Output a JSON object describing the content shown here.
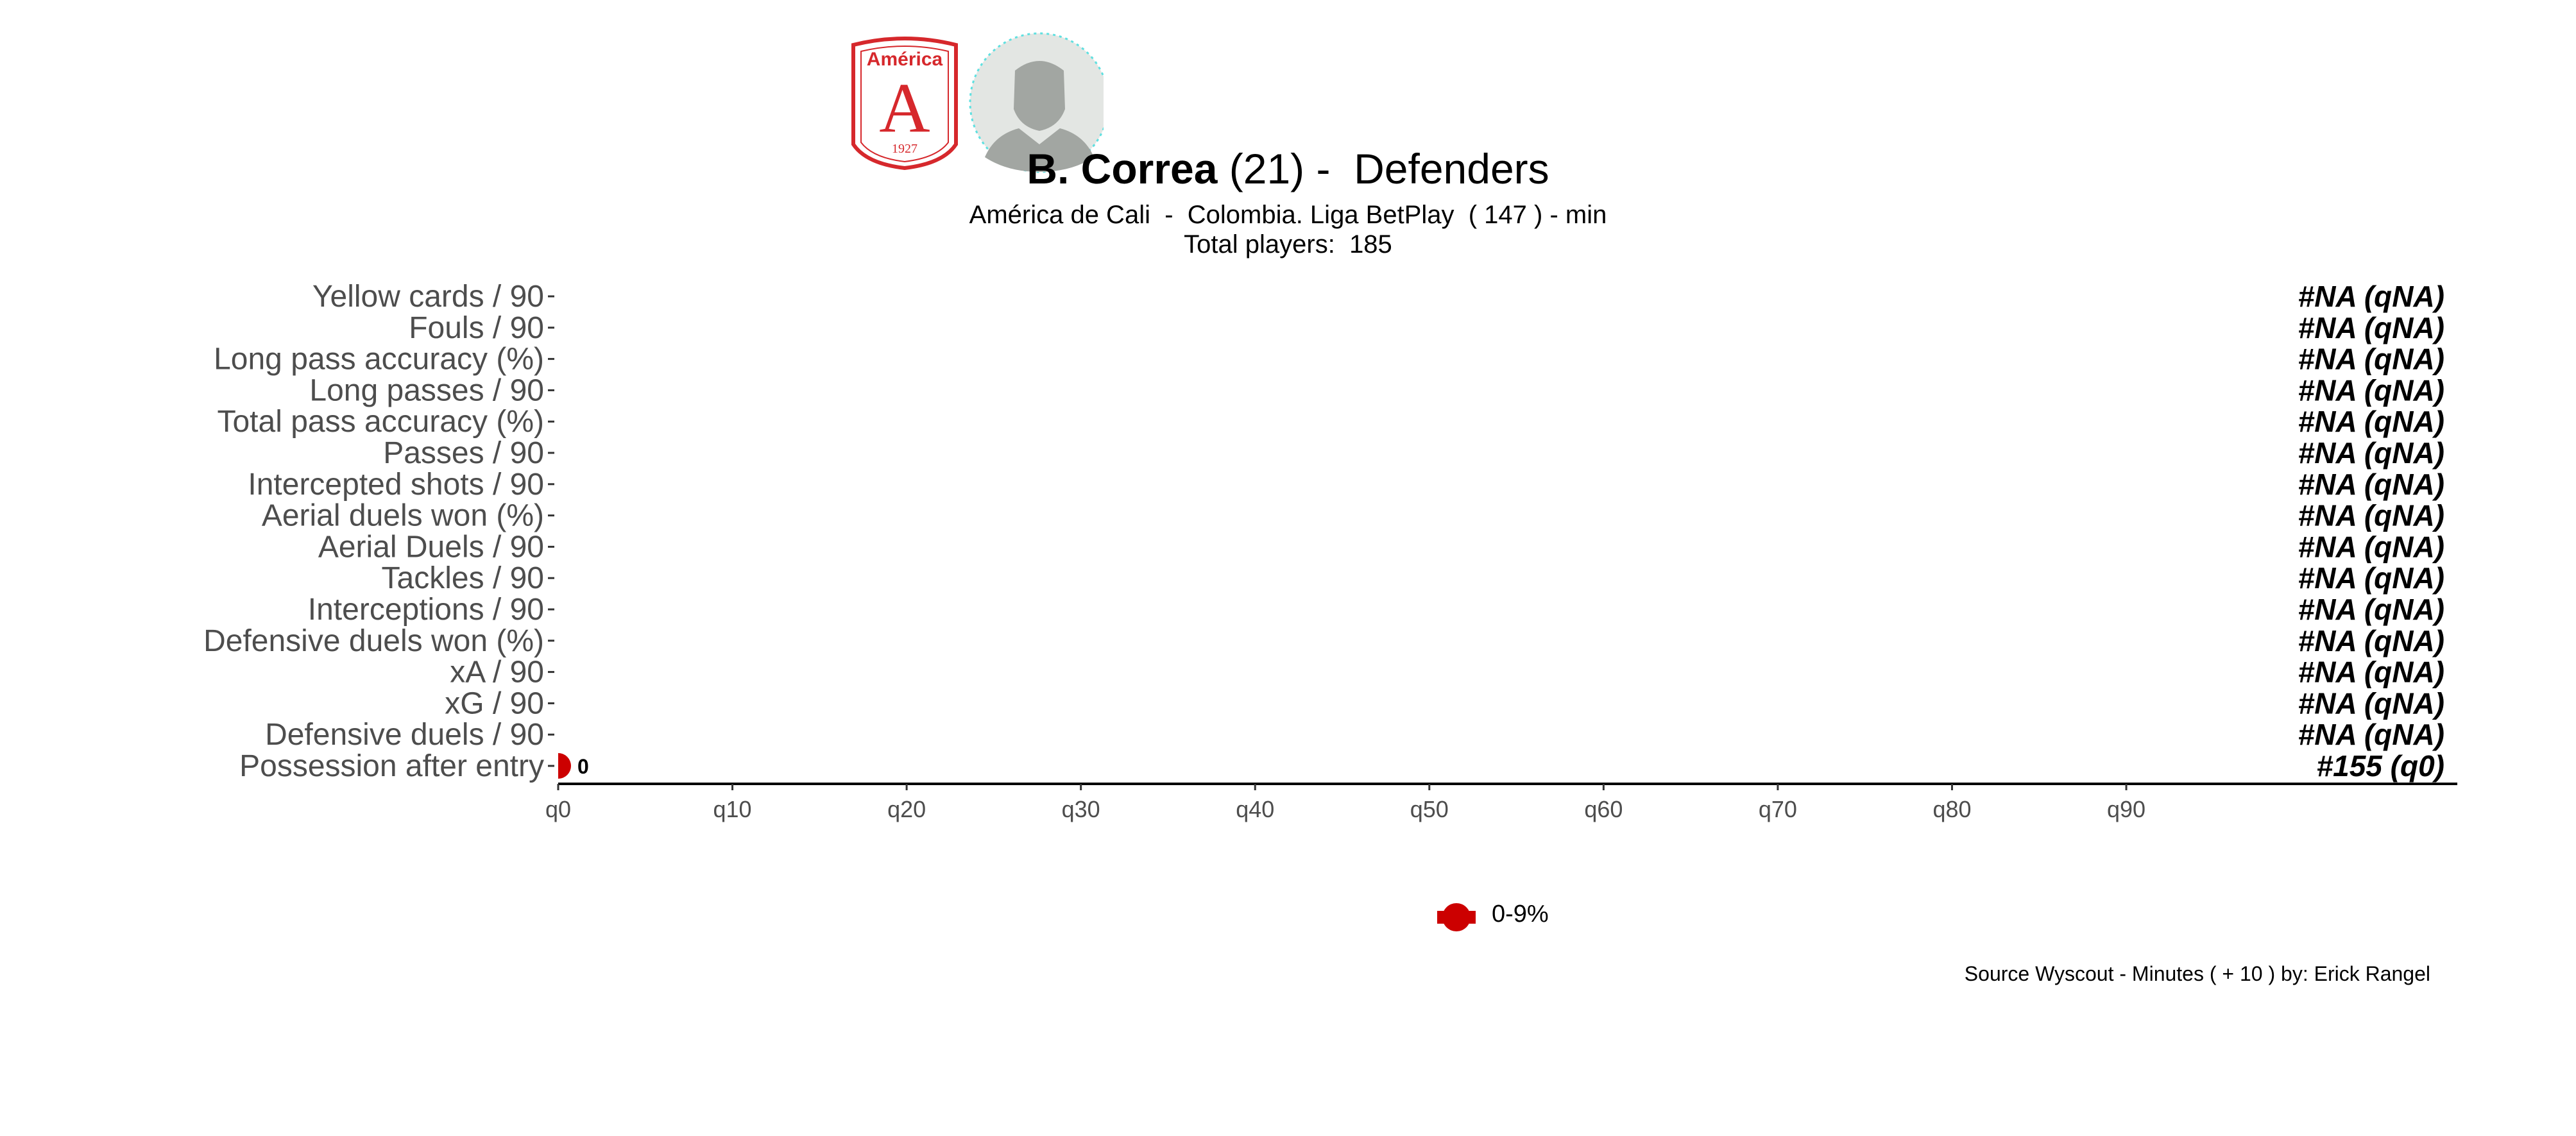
{
  "header": {
    "crest": {
      "name": "América",
      "letter": "A",
      "year": "1927",
      "color": "#d6282c"
    },
    "player_photo": "player-silhouette"
  },
  "title": {
    "player_name": "B. Correa",
    "rest": " (21) -  Defenders"
  },
  "subtitle": {
    "line1": "América de Cali  -  Colombia. Liga BetPlay  ( 147 ) - min",
    "line2": "Total players:  185"
  },
  "chart_data": {
    "type": "scatter",
    "categories": [
      "Yellow cards / 90",
      "Fouls / 90",
      "Long pass accuracy (%)",
      "Long passes / 90",
      "Total pass accuracy (%)",
      "Passes / 90",
      "Intercepted shots / 90",
      "Aerial duels won (%)",
      "Aerial Duels / 90",
      "Tackles / 90",
      "Interceptions / 90",
      "Defensive duels won (%)",
      "xA / 90",
      "xG / 90",
      "Defensive duels / 90",
      "Possession after entry"
    ],
    "points": [
      {
        "category": "Possession after entry",
        "x": 0,
        "label": "0",
        "color": "#cc0000"
      }
    ],
    "right_labels": [
      "#NA (qNA)",
      "#NA (qNA)",
      "#NA (qNA)",
      "#NA (qNA)",
      "#NA (qNA)",
      "#NA (qNA)",
      "#NA (qNA)",
      "#NA (qNA)",
      "#NA (qNA)",
      "#NA (qNA)",
      "#NA (qNA)",
      "#NA (qNA)",
      "#NA (qNA)",
      "#NA (qNA)",
      "#NA (qNA)",
      "#155 (q0)"
    ],
    "x_ticks": [
      "q0",
      "q10",
      "q20",
      "q30",
      "q40",
      "q50",
      "q60",
      "q70",
      "q80",
      "q90"
    ],
    "x_tick_values": [
      0,
      10,
      20,
      30,
      40,
      50,
      60,
      70,
      80,
      90
    ],
    "xlim": [
      0,
      109
    ],
    "grid": false,
    "legend": {
      "position": "bottom",
      "entries": [
        {
          "label": "0-9%",
          "color": "#cc0000"
        }
      ]
    }
  },
  "caption": "Source Wyscout - Minutes ( + 10 ) by: Erick Rangel"
}
